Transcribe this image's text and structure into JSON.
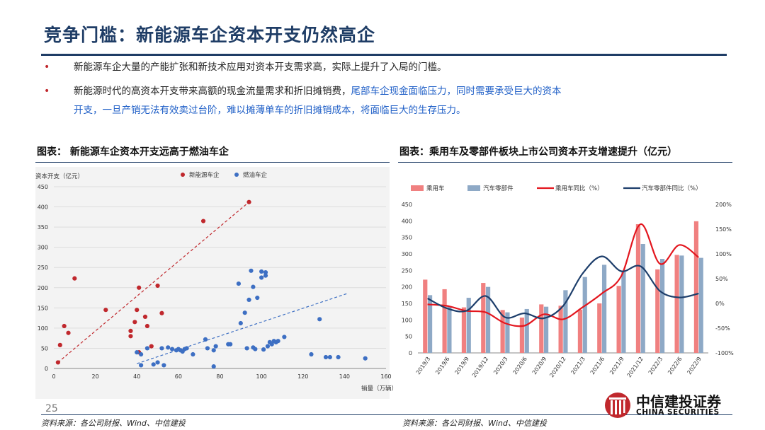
{
  "page": {
    "title": "竞争门槛：新能源车企资本开支仍然高企",
    "page_number": "25"
  },
  "bullets": [
    {
      "text_a": "新能源车企大量的产能扩张和新技术应用对资本开支需求高，实际上提升了入局的门槛。",
      "text_b": "",
      "line2": ""
    },
    {
      "text_a": "新能源时代的高资本开支带来高额的现金流量需求和折旧摊销费，",
      "text_b": "尾部车企现金面临压力，同时需要承受巨大的资本",
      "line2": "开支，一旦产销无法有效卖过台阶，难以摊薄单车的折旧摊销成本，将面临巨大的生存压力。"
    }
  ],
  "bullet_marker": "•",
  "left_panel": {
    "title": "图表：  新能源车企资本开支远高于燃油车企",
    "source": "资料来源：各公司财报、Wind、中信建投"
  },
  "right_panel": {
    "title": "图表：乘用车及零部件板块上市公司资本开支增速提升（亿元）",
    "source": "资料来源：各公司财报、Wind、中信建投"
  },
  "logo": {
    "name_cn": "中信建投证券",
    "name_en": "CHINA SECURITIES"
  },
  "chart_data": [
    {
      "type": "scatter",
      "title": "",
      "ylabel": "资本开支（亿元）",
      "xlabel": "销量（万辆）",
      "xlim": [
        0,
        160
      ],
      "ylim": [
        0,
        450
      ],
      "x_ticks": [
        "0",
        "20",
        "40",
        "60",
        "80",
        "100",
        "120",
        "140",
        "160"
      ],
      "y_ticks": [
        "0",
        "50",
        "100",
        "150",
        "200",
        "250",
        "300",
        "350",
        "400",
        "450"
      ],
      "legend_position": "top",
      "grid": "horizontal",
      "series": [
        {
          "name": "新能源车企",
          "color": "#c0282d",
          "trend": "dashed-linear",
          "trend_from": [
            2,
            15
          ],
          "trend_to": [
            94,
            412
          ],
          "points": [
            [
              2,
              15
            ],
            [
              3,
              58
            ],
            [
              5,
              105
            ],
            [
              7,
              88
            ],
            [
              10,
              223
            ],
            [
              25,
              145
            ],
            [
              37,
              93
            ],
            [
              37,
              80
            ],
            [
              39,
              115
            ],
            [
              40,
              145
            ],
            [
              41,
              200
            ],
            [
              41,
              40
            ],
            [
              44,
              128
            ],
            [
              45,
              105
            ],
            [
              47,
              55
            ],
            [
              50,
              205
            ],
            [
              52,
              137
            ],
            [
              72,
              365
            ],
            [
              94,
              412
            ]
          ]
        },
        {
          "name": "燃油车企",
          "color": "#3d6fc3",
          "trend": "dashed-linear",
          "trend_from": [
            40,
            12
          ],
          "trend_to": [
            141,
            185
          ],
          "points": [
            [
              40,
              40
            ],
            [
              42,
              8
            ],
            [
              42,
              35
            ],
            [
              45,
              50
            ],
            [
              48,
              10
            ],
            [
              50,
              15
            ],
            [
              52,
              50
            ],
            [
              53,
              8
            ],
            [
              55,
              52
            ],
            [
              57,
              48
            ],
            [
              59,
              45
            ],
            [
              60,
              48
            ],
            [
              61,
              45
            ],
            [
              62,
              42
            ],
            [
              63,
              48
            ],
            [
              64,
              50
            ],
            [
              67,
              35
            ],
            [
              73,
              72
            ],
            [
              74,
              50
            ],
            [
              77,
              45
            ],
            [
              77,
              5
            ],
            [
              78,
              55
            ],
            [
              84,
              60
            ],
            [
              85,
              60
            ],
            [
              89,
              210
            ],
            [
              90,
              112
            ],
            [
              92,
              138
            ],
            [
              93,
              50
            ],
            [
              94,
              170
            ],
            [
              95,
              242
            ],
            [
              96,
              52
            ],
            [
              96,
              202
            ],
            [
              97,
              48
            ],
            [
              98,
              175
            ],
            [
              100,
              240
            ],
            [
              100,
              225
            ],
            [
              101,
              47
            ],
            [
              102,
              230
            ],
            [
              102,
              238
            ],
            [
              103,
              55
            ],
            [
              104,
              65
            ],
            [
              105,
              60
            ],
            [
              106,
              68
            ],
            [
              107,
              65
            ],
            [
              108,
              68
            ],
            [
              111,
              78
            ],
            [
              124,
              35
            ],
            [
              128,
              122
            ],
            [
              131,
              28
            ],
            [
              133,
              28
            ],
            [
              137,
              28
            ],
            [
              150,
              25
            ]
          ]
        }
      ]
    },
    {
      "type": "bar",
      "title": "",
      "categories": [
        "2019/3",
        "2019/6",
        "2019/9",
        "2019/12",
        "2020/3",
        "2020/6",
        "2020/9",
        "2020/12",
        "2021/3",
        "2021/6",
        "2021/9",
        "2021/12",
        "2022/3",
        "2022/6",
        "2022/9"
      ],
      "ylim_left": [
        0,
        450
      ],
      "ylim_right": [
        -100,
        200
      ],
      "y_ticks_left": [
        "0",
        "50",
        "100",
        "150",
        "200",
        "250",
        "300",
        "350",
        "400",
        "450"
      ],
      "y_ticks_right": [
        "-100%",
        "-50%",
        "0%",
        "50%",
        "100%",
        "150%",
        "200%"
      ],
      "legend_position": "top",
      "series": [
        {
          "name": "乘用车",
          "kind": "bar",
          "axis": "left",
          "color": "#f08080",
          "values": [
            222,
            193,
            138,
            212,
            130,
            107,
            147,
            143,
            131,
            150,
            203,
            390,
            253,
            297,
            399
          ]
        },
        {
          "name": "汽车零部件",
          "kind": "bar",
          "axis": "left",
          "color": "#8ea9c6",
          "values": [
            175,
            140,
            167,
            200,
            123,
            133,
            140,
            190,
            230,
            267,
            245,
            330,
            285,
            295,
            288
          ]
        },
        {
          "name": "乘用车同比（%）",
          "kind": "line",
          "axis": "right",
          "color": "#e3161e",
          "values": [
            -2,
            -5,
            -15,
            -18,
            -40,
            -45,
            -22,
            -32,
            -8,
            20,
            55,
            160,
            80,
            118,
            93
          ]
        },
        {
          "name": "汽车零部件同比（%）",
          "kind": "line",
          "axis": "right",
          "color": "#1d3e6b",
          "values": [
            10,
            -10,
            -15,
            15,
            -28,
            -20,
            -30,
            -5,
            60,
            95,
            65,
            75,
            25,
            12,
            20
          ]
        }
      ]
    }
  ]
}
